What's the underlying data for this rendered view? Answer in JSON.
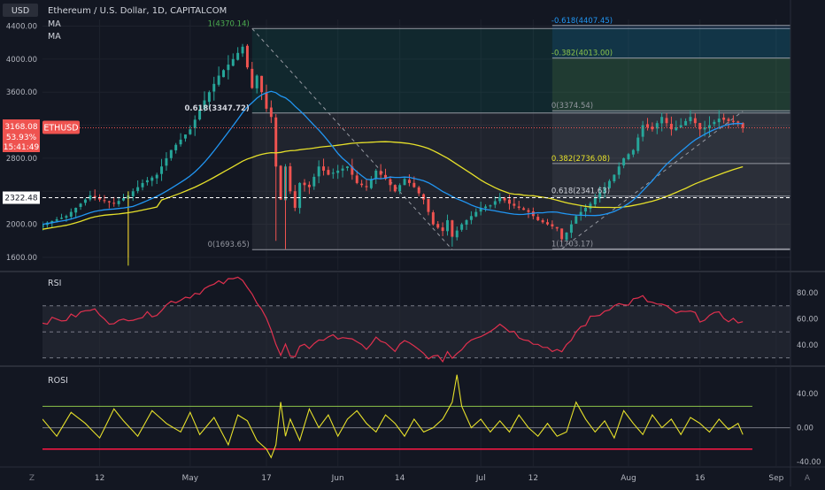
{
  "header": {
    "symbol_title": "Ethereum / U.S. Dollar, 1D, CAPITALCOM",
    "currency": "USD",
    "ma1_label": "MA",
    "ma2_label": "MA",
    "ticker": "ETHUSD"
  },
  "price_badge": {
    "price": "3168.08",
    "change": "53.93%",
    "countdown": "15:41:49",
    "line_level": "2322.48"
  },
  "panes": {
    "rsi_label": "RSI",
    "rosi_label": "ROSI"
  },
  "bottom_bar": {
    "timezone_btn": "Z",
    "auto_btn": "A"
  },
  "colors": {
    "background": "#131722",
    "grid": "#1e222d",
    "up": "#26a69a",
    "down": "#ef5350",
    "ma_fast": "#2196f3",
    "ma_slow": "#e6e02a",
    "rsi": "#e0304e",
    "rosi": "#e6e02a",
    "rosi_upper": "#8bc34a",
    "rosi_lower": "#ff1744"
  },
  "chart_data": [
    {
      "type": "candlestick",
      "pane": "price",
      "y_ticks": [
        4400,
        4000,
        3600,
        3200,
        2800,
        2400,
        2000,
        1600
      ],
      "y_tick_labels": [
        "4400.00",
        "4000.00",
        "3600.00",
        "",
        "2800.00",
        "",
        "2000.00",
        "1600.00"
      ],
      "ylim": [
        1450,
        4480
      ],
      "x_ticks": [
        {
          "label": "12",
          "day": 12
        },
        {
          "label": "May",
          "day": 31
        },
        {
          "label": "17",
          "day": 47
        },
        {
          "label": "Jun",
          "day": 62
        },
        {
          "label": "14",
          "day": 75
        },
        {
          "label": "Jul",
          "day": 92
        },
        {
          "label": "12",
          "day": 103
        },
        {
          "label": "Aug",
          "day": 123
        },
        {
          "label": "16",
          "day": 138
        },
        {
          "label": "Sep",
          "day": 154
        }
      ],
      "x_domain": [
        0,
        157
      ],
      "anchor_closes": [
        [
          0,
          2000
        ],
        [
          5,
          2100
        ],
        [
          10,
          2350
        ],
        [
          12,
          2300
        ],
        [
          15,
          2250
        ],
        [
          18,
          2350
        ],
        [
          21,
          2500
        ],
        [
          24,
          2600
        ],
        [
          27,
          2900
        ],
        [
          31,
          3150
        ],
        [
          34,
          3500
        ],
        [
          37,
          3800
        ],
        [
          40,
          4000
        ],
        [
          42,
          4150
        ],
        [
          44,
          3650
        ],
        [
          45,
          3800
        ],
        [
          47,
          3400
        ],
        [
          48,
          3300
        ],
        [
          49,
          2700
        ],
        [
          50,
          2300
        ],
        [
          51,
          2700
        ],
        [
          52,
          2400
        ],
        [
          53,
          2200
        ],
        [
          54,
          2500
        ],
        [
          56,
          2450
        ],
        [
          58,
          2700
        ],
        [
          60,
          2600
        ],
        [
          62,
          2650
        ],
        [
          64,
          2700
        ],
        [
          66,
          2500
        ],
        [
          68,
          2450
        ],
        [
          70,
          2650
        ],
        [
          72,
          2550
        ],
        [
          74,
          2400
        ],
        [
          76,
          2550
        ],
        [
          78,
          2450
        ],
        [
          80,
          2300
        ],
        [
          82,
          2000
        ],
        [
          84,
          1920
        ],
        [
          85,
          2050
        ],
        [
          86,
          1850
        ],
        [
          88,
          2000
        ],
        [
          90,
          2100
        ],
        [
          92,
          2200
        ],
        [
          94,
          2230
        ],
        [
          96,
          2330
        ],
        [
          98,
          2250
        ],
        [
          100,
          2200
        ],
        [
          102,
          2150
        ],
        [
          104,
          2050
        ],
        [
          106,
          2000
        ],
        [
          108,
          1950
        ],
        [
          109,
          1820
        ],
        [
          110,
          1900
        ],
        [
          112,
          2100
        ],
        [
          115,
          2250
        ],
        [
          118,
          2450
        ],
        [
          120,
          2600
        ],
        [
          122,
          2800
        ],
        [
          124,
          2900
        ],
        [
          126,
          3200
        ],
        [
          128,
          3150
        ],
        [
          130,
          3300
        ],
        [
          132,
          3150
        ],
        [
          134,
          3200
        ],
        [
          136,
          3300
        ],
        [
          138,
          3150
        ],
        [
          140,
          3200
        ],
        [
          142,
          3280
        ],
        [
          144,
          3250
        ],
        [
          146,
          3230
        ],
        [
          147,
          3168
        ]
      ],
      "fib_left": {
        "levels": [
          {
            "label": "1(4370.14)",
            "price": 4370.14
          },
          {
            "label": "0.618(3347.72)",
            "price": 3347.72
          },
          {
            "label": "0(1693.65)",
            "price": 1693.65
          }
        ],
        "day_start": 44,
        "day_end": 157
      },
      "fib_right": {
        "levels": [
          {
            "label": "-0.618(4407.45)",
            "price": 4407.45
          },
          {
            "label": "-0.382(4013.00)",
            "price": 4013.0
          },
          {
            "label": "0(3374.54)",
            "price": 3374.54
          },
          {
            "label": "0.382(2736.08)",
            "price": 2736.08
          },
          {
            "label": "0.618(2341.63)",
            "price": 2341.63
          },
          {
            "label": "1(1703.17)",
            "price": 1703.17
          }
        ],
        "day_start": 107,
        "day_end": 157
      },
      "trend_lines": [
        {
          "from": [
            44,
            4370
          ],
          "to": [
            86,
            1694
          ]
        },
        {
          "from": [
            109,
            1703
          ],
          "to": [
            147,
            3370
          ]
        }
      ],
      "hline_price": 2322.48,
      "last_price": 3168.08
    },
    {
      "type": "line",
      "pane": "rsi",
      "y_ticks": [
        80,
        60,
        40
      ],
      "y_tick_labels": [
        "80.00",
        "60.00",
        "40.00"
      ],
      "ylim": [
        25,
        95
      ],
      "band": [
        30,
        70
      ],
      "mid": 50,
      "anchors": [
        [
          0,
          58
        ],
        [
          5,
          60
        ],
        [
          10,
          67
        ],
        [
          12,
          65
        ],
        [
          15,
          55
        ],
        [
          18,
          61
        ],
        [
          21,
          62
        ],
        [
          24,
          65
        ],
        [
          27,
          73
        ],
        [
          31,
          78
        ],
        [
          34,
          83
        ],
        [
          37,
          87
        ],
        [
          40,
          90
        ],
        [
          42,
          92
        ],
        [
          44,
          80
        ],
        [
          45,
          72
        ],
        [
          47,
          60
        ],
        [
          48,
          50
        ],
        [
          49,
          38
        ],
        [
          50,
          30
        ],
        [
          51,
          42
        ],
        [
          52,
          33
        ],
        [
          53,
          30
        ],
        [
          54,
          40
        ],
        [
          56,
          38
        ],
        [
          58,
          45
        ],
        [
          60,
          44
        ],
        [
          62,
          47
        ],
        [
          64,
          46
        ],
        [
          66,
          40
        ],
        [
          68,
          38
        ],
        [
          70,
          45
        ],
        [
          72,
          40
        ],
        [
          74,
          36
        ],
        [
          76,
          42
        ],
        [
          78,
          38
        ],
        [
          80,
          33
        ],
        [
          82,
          30
        ],
        [
          84,
          29
        ],
        [
          85,
          35
        ],
        [
          86,
          30
        ],
        [
          88,
          38
        ],
        [
          90,
          45
        ],
        [
          92,
          48
        ],
        [
          94,
          52
        ],
        [
          96,
          56
        ],
        [
          98,
          52
        ],
        [
          100,
          47
        ],
        [
          102,
          45
        ],
        [
          104,
          40
        ],
        [
          106,
          38
        ],
        [
          108,
          36
        ],
        [
          109,
          33
        ],
        [
          110,
          38
        ],
        [
          112,
          50
        ],
        [
          115,
          60
        ],
        [
          118,
          66
        ],
        [
          120,
          72
        ],
        [
          122,
          70
        ],
        [
          124,
          74
        ],
        [
          126,
          76
        ],
        [
          128,
          72
        ],
        [
          130,
          70
        ],
        [
          132,
          66
        ],
        [
          134,
          64
        ],
        [
          136,
          65
        ],
        [
          138,
          60
        ],
        [
          140,
          62
        ],
        [
          142,
          63
        ],
        [
          144,
          60
        ],
        [
          146,
          58
        ],
        [
          147,
          57
        ]
      ]
    },
    {
      "type": "line",
      "pane": "rosi",
      "y_ticks": [
        40,
        0,
        -40
      ],
      "y_tick_labels": [
        "40.00",
        "0.00",
        "-40.00"
      ],
      "ylim": [
        -45,
        70
      ],
      "upper_line": 25,
      "lower_line": -25,
      "zero_line": 0,
      "anchors": [
        [
          0,
          10
        ],
        [
          3,
          -10
        ],
        [
          6,
          18
        ],
        [
          9,
          5
        ],
        [
          12,
          -12
        ],
        [
          15,
          22
        ],
        [
          17,
          8
        ],
        [
          20,
          -10
        ],
        [
          23,
          20
        ],
        [
          26,
          5
        ],
        [
          29,
          -5
        ],
        [
          31,
          18
        ],
        [
          33,
          -8
        ],
        [
          36,
          12
        ],
        [
          39,
          -20
        ],
        [
          41,
          15
        ],
        [
          43,
          8
        ],
        [
          45,
          -15
        ],
        [
          47,
          -25
        ],
        [
          48,
          -35
        ],
        [
          49,
          -20
        ],
        [
          50,
          30
        ],
        [
          51,
          -10
        ],
        [
          52,
          10
        ],
        [
          54,
          -15
        ],
        [
          56,
          22
        ],
        [
          58,
          0
        ],
        [
          60,
          15
        ],
        [
          62,
          -10
        ],
        [
          64,
          10
        ],
        [
          66,
          20
        ],
        [
          68,
          5
        ],
        [
          70,
          -5
        ],
        [
          72,
          15
        ],
        [
          74,
          5
        ],
        [
          76,
          -10
        ],
        [
          78,
          10
        ],
        [
          80,
          -5
        ],
        [
          82,
          0
        ],
        [
          84,
          10
        ],
        [
          86,
          30
        ],
        [
          87,
          62
        ],
        [
          88,
          25
        ],
        [
          90,
          0
        ],
        [
          92,
          10
        ],
        [
          94,
          -5
        ],
        [
          96,
          8
        ],
        [
          98,
          -5
        ],
        [
          100,
          15
        ],
        [
          102,
          0
        ],
        [
          104,
          -10
        ],
        [
          106,
          5
        ],
        [
          108,
          -10
        ],
        [
          110,
          -5
        ],
        [
          112,
          30
        ],
        [
          114,
          10
        ],
        [
          116,
          -5
        ],
        [
          118,
          8
        ],
        [
          120,
          -12
        ],
        [
          122,
          20
        ],
        [
          124,
          5
        ],
        [
          126,
          -8
        ],
        [
          128,
          15
        ],
        [
          130,
          0
        ],
        [
          132,
          10
        ],
        [
          134,
          -8
        ],
        [
          136,
          12
        ],
        [
          138,
          5
        ],
        [
          140,
          -5
        ],
        [
          142,
          10
        ],
        [
          144,
          -2
        ],
        [
          146,
          5
        ],
        [
          147,
          -8
        ]
      ]
    }
  ]
}
